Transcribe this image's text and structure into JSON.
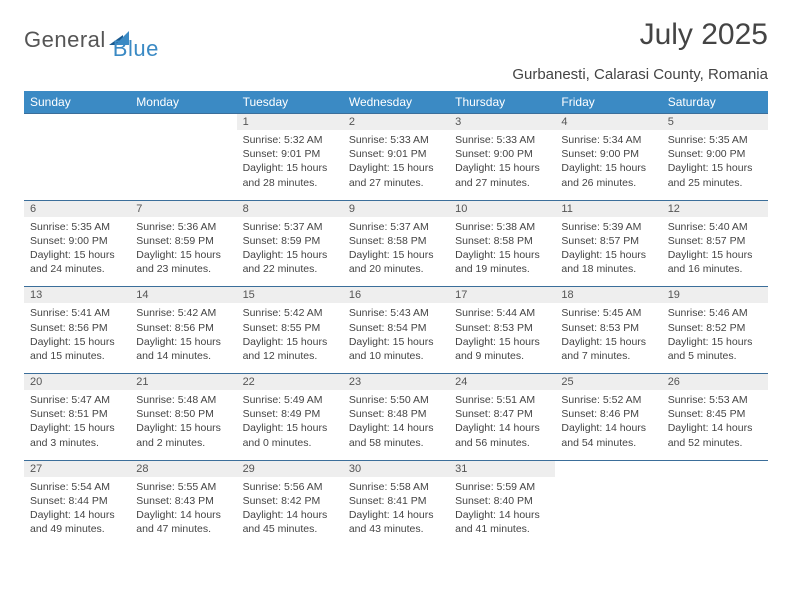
{
  "logo": {
    "textA": "General",
    "textB": "Blue"
  },
  "title": "July 2025",
  "location": "Gurbanesti, Calarasi County, Romania",
  "colors": {
    "header_bg": "#3b8ac4",
    "header_fg": "#ffffff",
    "daynum_bg": "#eeeeee",
    "rule": "#3b6e9a",
    "text": "#444444",
    "logo_gray": "#555555",
    "logo_blue": "#3b8ac4",
    "page_bg": "#ffffff"
  },
  "weekdays": [
    "Sunday",
    "Monday",
    "Tuesday",
    "Wednesday",
    "Thursday",
    "Friday",
    "Saturday"
  ],
  "weeks": [
    [
      null,
      null,
      {
        "n": "1",
        "sr": "5:32 AM",
        "ss": "9:01 PM",
        "dl": "15 hours and 28 minutes."
      },
      {
        "n": "2",
        "sr": "5:33 AM",
        "ss": "9:01 PM",
        "dl": "15 hours and 27 minutes."
      },
      {
        "n": "3",
        "sr": "5:33 AM",
        "ss": "9:00 PM",
        "dl": "15 hours and 27 minutes."
      },
      {
        "n": "4",
        "sr": "5:34 AM",
        "ss": "9:00 PM",
        "dl": "15 hours and 26 minutes."
      },
      {
        "n": "5",
        "sr": "5:35 AM",
        "ss": "9:00 PM",
        "dl": "15 hours and 25 minutes."
      }
    ],
    [
      {
        "n": "6",
        "sr": "5:35 AM",
        "ss": "9:00 PM",
        "dl": "15 hours and 24 minutes."
      },
      {
        "n": "7",
        "sr": "5:36 AM",
        "ss": "8:59 PM",
        "dl": "15 hours and 23 minutes."
      },
      {
        "n": "8",
        "sr": "5:37 AM",
        "ss": "8:59 PM",
        "dl": "15 hours and 22 minutes."
      },
      {
        "n": "9",
        "sr": "5:37 AM",
        "ss": "8:58 PM",
        "dl": "15 hours and 20 minutes."
      },
      {
        "n": "10",
        "sr": "5:38 AM",
        "ss": "8:58 PM",
        "dl": "15 hours and 19 minutes."
      },
      {
        "n": "11",
        "sr": "5:39 AM",
        "ss": "8:57 PM",
        "dl": "15 hours and 18 minutes."
      },
      {
        "n": "12",
        "sr": "5:40 AM",
        "ss": "8:57 PM",
        "dl": "15 hours and 16 minutes."
      }
    ],
    [
      {
        "n": "13",
        "sr": "5:41 AM",
        "ss": "8:56 PM",
        "dl": "15 hours and 15 minutes."
      },
      {
        "n": "14",
        "sr": "5:42 AM",
        "ss": "8:56 PM",
        "dl": "15 hours and 14 minutes."
      },
      {
        "n": "15",
        "sr": "5:42 AM",
        "ss": "8:55 PM",
        "dl": "15 hours and 12 minutes."
      },
      {
        "n": "16",
        "sr": "5:43 AM",
        "ss": "8:54 PM",
        "dl": "15 hours and 10 minutes."
      },
      {
        "n": "17",
        "sr": "5:44 AM",
        "ss": "8:53 PM",
        "dl": "15 hours and 9 minutes."
      },
      {
        "n": "18",
        "sr": "5:45 AM",
        "ss": "8:53 PM",
        "dl": "15 hours and 7 minutes."
      },
      {
        "n": "19",
        "sr": "5:46 AM",
        "ss": "8:52 PM",
        "dl": "15 hours and 5 minutes."
      }
    ],
    [
      {
        "n": "20",
        "sr": "5:47 AM",
        "ss": "8:51 PM",
        "dl": "15 hours and 3 minutes."
      },
      {
        "n": "21",
        "sr": "5:48 AM",
        "ss": "8:50 PM",
        "dl": "15 hours and 2 minutes."
      },
      {
        "n": "22",
        "sr": "5:49 AM",
        "ss": "8:49 PM",
        "dl": "15 hours and 0 minutes."
      },
      {
        "n": "23",
        "sr": "5:50 AM",
        "ss": "8:48 PM",
        "dl": "14 hours and 58 minutes."
      },
      {
        "n": "24",
        "sr": "5:51 AM",
        "ss": "8:47 PM",
        "dl": "14 hours and 56 minutes."
      },
      {
        "n": "25",
        "sr": "5:52 AM",
        "ss": "8:46 PM",
        "dl": "14 hours and 54 minutes."
      },
      {
        "n": "26",
        "sr": "5:53 AM",
        "ss": "8:45 PM",
        "dl": "14 hours and 52 minutes."
      }
    ],
    [
      {
        "n": "27",
        "sr": "5:54 AM",
        "ss": "8:44 PM",
        "dl": "14 hours and 49 minutes."
      },
      {
        "n": "28",
        "sr": "5:55 AM",
        "ss": "8:43 PM",
        "dl": "14 hours and 47 minutes."
      },
      {
        "n": "29",
        "sr": "5:56 AM",
        "ss": "8:42 PM",
        "dl": "14 hours and 45 minutes."
      },
      {
        "n": "30",
        "sr": "5:58 AM",
        "ss": "8:41 PM",
        "dl": "14 hours and 43 minutes."
      },
      {
        "n": "31",
        "sr": "5:59 AM",
        "ss": "8:40 PM",
        "dl": "14 hours and 41 minutes."
      },
      null,
      null
    ]
  ],
  "labels": {
    "sunrise": "Sunrise: ",
    "sunset": "Sunset: ",
    "daylight": "Daylight: "
  }
}
